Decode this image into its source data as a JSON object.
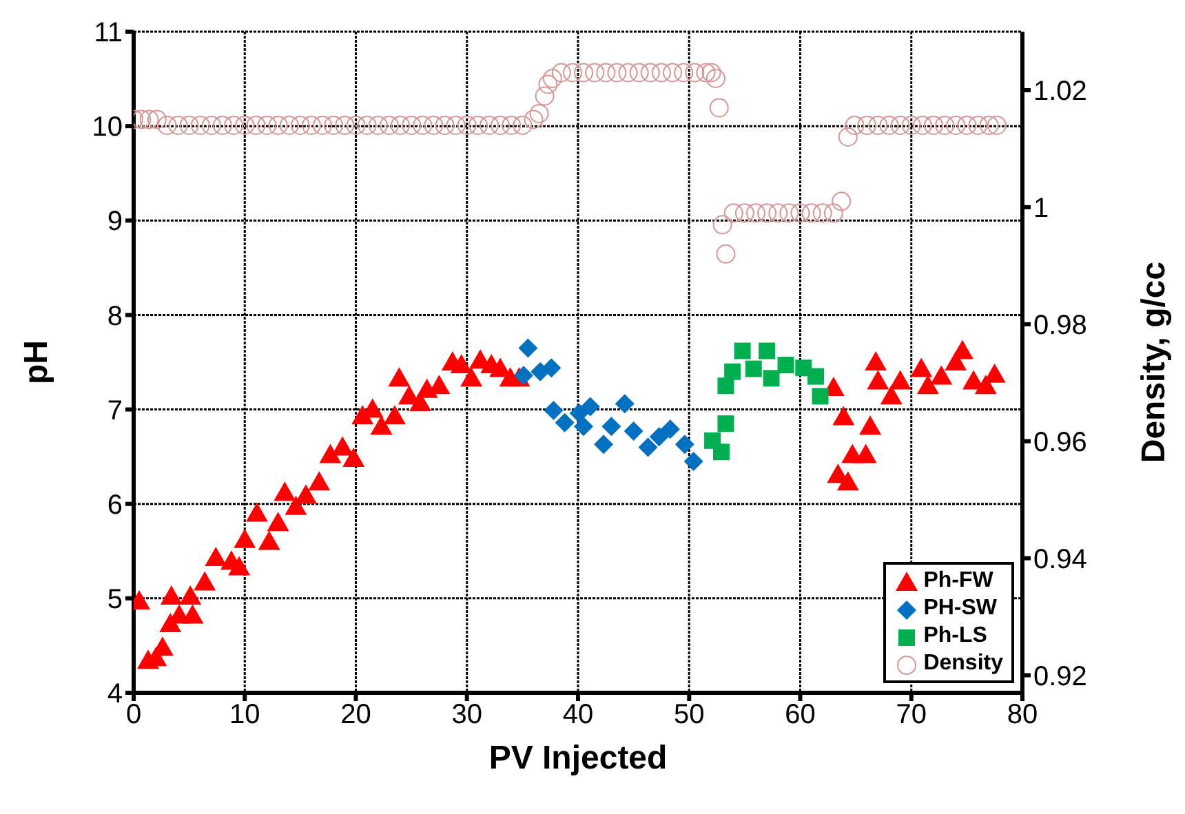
{
  "chart_data": {
    "type": "scatter",
    "xlabel": "PV Injected",
    "ylabel": "pH",
    "y2label": "Density, g/cc",
    "xlim": [
      0,
      80
    ],
    "xticks": [
      0,
      10,
      20,
      30,
      40,
      50,
      60,
      70,
      80
    ],
    "ylim": [
      4,
      11
    ],
    "yticks": [
      4,
      5,
      6,
      7,
      8,
      9,
      10,
      11
    ],
    "y2lim": [
      0.917,
      1.03
    ],
    "y2ticks": [
      0.92,
      0.94,
      0.96,
      0.98,
      1,
      1.02
    ],
    "grid": true,
    "legend": "bottom right",
    "series": [
      {
        "name": "Ph-FW",
        "color": "#ff0000",
        "marker": "triangle",
        "x": [
          0.5,
          1.3,
          2.0,
          2.6,
          3.3,
          3.4,
          4.1,
          5.1,
          5.3,
          6.4,
          7.4,
          8.8,
          9.5,
          10,
          11.1,
          12.2,
          13,
          13.6,
          14.6,
          15.5,
          16.7,
          17.7,
          18.8,
          19.8,
          20.6,
          21.5,
          22.3,
          23.5,
          23.9,
          24.8,
          25.8,
          26.4,
          27.5,
          28.7,
          29.5,
          30.4,
          31.2,
          32.2,
          33,
          33.9,
          34.7,
          63,
          63.9,
          63.4,
          64.3,
          64.7,
          65.9,
          66.3,
          66.8,
          67,
          68.2,
          69,
          70.9,
          71.5,
          72.7,
          74,
          74.6,
          75.6,
          76.7,
          77.5
        ],
        "values": [
          4.97,
          4.34,
          4.37,
          4.48,
          4.73,
          5.02,
          4.82,
          5.02,
          4.82,
          5.17,
          5.43,
          5.39,
          5.33,
          5.62,
          5.9,
          5.6,
          5.8,
          6.12,
          5.97,
          6.09,
          6.23,
          6.52,
          6.6,
          6.48,
          6.93,
          7.0,
          6.82,
          6.93,
          7.33,
          7.14,
          7.07,
          7.21,
          7.25,
          7.5,
          7.47,
          7.33,
          7.52,
          7.47,
          7.43,
          7.33,
          7.33,
          7.23,
          6.92,
          6.31,
          6.23,
          6.52,
          6.52,
          6.82,
          7.5,
          7.3,
          7.14,
          7.3,
          7.43,
          7.25,
          7.35,
          7.5,
          7.62,
          7.3,
          7.25,
          7.37
        ]
      },
      {
        "name": "PH-SW",
        "color": "#0070c0",
        "marker": "diamond",
        "x": [
          35.1,
          35.5,
          36.6,
          37.6,
          37.8,
          38.8,
          40.1,
          40.5,
          41.1,
          42.3,
          43,
          44.2,
          45,
          46.3,
          47.3,
          48.3,
          49.6,
          50.4
        ],
        "values": [
          7.36,
          7.65,
          7.4,
          7.44,
          6.99,
          6.86,
          6.96,
          6.82,
          7.03,
          6.63,
          6.82,
          7.06,
          6.77,
          6.6,
          6.71,
          6.79,
          6.63,
          6.45
        ]
      },
      {
        "name": "Ph-LS",
        "color": "#00b050",
        "marker": "square",
        "x": [
          52.1,
          52.9,
          53.3,
          53.3,
          53.9,
          54.8,
          55.8,
          57,
          57.4,
          58.7,
          60.3,
          61.4,
          61.8
        ],
        "values": [
          6.67,
          6.55,
          6.85,
          7.25,
          7.4,
          7.62,
          7.43,
          7.62,
          7.33,
          7.47,
          7.44,
          7.35,
          7.14
        ]
      },
      {
        "name": "Density",
        "color": "#d99694",
        "marker": "circle",
        "axis": "y2",
        "x": [
          0,
          0.7,
          1.4,
          2.1,
          3,
          4,
          5,
          6,
          7,
          8,
          9,
          10,
          11,
          12,
          13,
          14,
          15,
          16,
          17,
          18,
          19,
          20,
          21,
          22,
          23,
          24,
          25,
          26,
          27,
          28,
          29,
          30,
          31,
          32,
          33,
          34,
          35,
          36,
          36.5,
          37,
          37.3,
          37.7,
          38.5,
          39.5,
          40.5,
          41.5,
          42.5,
          43.5,
          44.5,
          45.5,
          46.5,
          47.5,
          48.5,
          49.5,
          50.5,
          51.5,
          52,
          52.4,
          52.7,
          53,
          53.3,
          54,
          55,
          56,
          57,
          58,
          59,
          60,
          61,
          62,
          63,
          63.7,
          64.3,
          64.9,
          66,
          67,
          68,
          69,
          70,
          71,
          72,
          73,
          74,
          75,
          76,
          77,
          77.7
        ],
        "values": [
          1.015,
          1.015,
          1.015,
          1.015,
          1.014,
          1.014,
          1.014,
          1.014,
          1.014,
          1.014,
          1.014,
          1.014,
          1.014,
          1.014,
          1.014,
          1.014,
          1.014,
          1.014,
          1.014,
          1.014,
          1.014,
          1.014,
          1.014,
          1.014,
          1.014,
          1.014,
          1.014,
          1.014,
          1.014,
          1.014,
          1.014,
          1.014,
          1.014,
          1.014,
          1.014,
          1.014,
          1.014,
          1.015,
          1.016,
          1.019,
          1.021,
          1.022,
          1.023,
          1.023,
          1.023,
          1.023,
          1.023,
          1.023,
          1.023,
          1.023,
          1.023,
          1.023,
          1.023,
          1.023,
          1.023,
          1.023,
          1.023,
          1.022,
          1.017,
          0.997,
          0.992,
          0.999,
          0.999,
          0.999,
          0.999,
          0.999,
          0.999,
          0.999,
          0.999,
          0.999,
          0.999,
          1.001,
          1.012,
          1.014,
          1.014,
          1.014,
          1.014,
          1.014,
          1.014,
          1.014,
          1.014,
          1.014,
          1.014,
          1.014,
          1.014,
          1.014,
          1.014
        ]
      }
    ]
  }
}
